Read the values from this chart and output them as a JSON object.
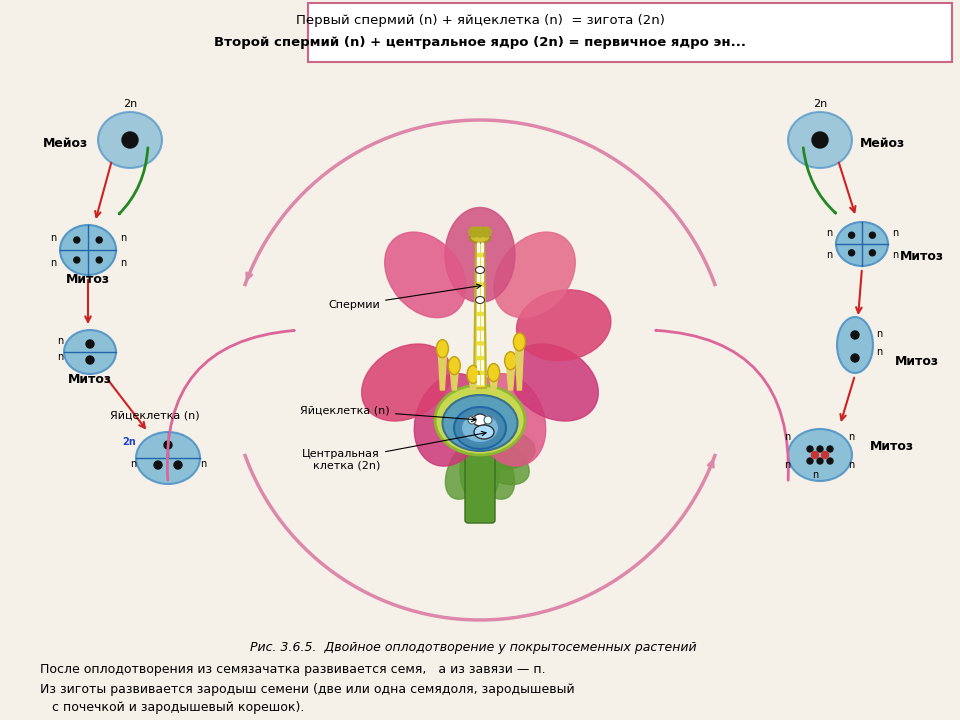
{
  "title1": "Первый спермий (n) + яйцеклетка (n)  = зигота (2n)",
  "title2": "Второй спермий (n) + центральное ядро (2n) = первичное ядро эн...",
  "fig_caption": "Рис. 3.6.5.  Двойное оплодотворение у покрытосеменных растений",
  "text_bottom1": "После оплодотворения из семязачатка развивается семя,   а из завязи — п.",
  "text_bottom2": "Из зиготы развивается зародыш семени (две или одна семядоля, зародышевый",
  "text_bottom3": "   с почечкой и зародышевый корешок).",
  "bg_color": "#f5f0e8",
  "cell_color": "#7ab8d4",
  "cell_edge": "#4a90c4",
  "nucleus_color": "#1a1a1a",
  "arrow_color": "#cc2222",
  "arrow_color2": "#cc88aa",
  "label_left": [
    "Мейоз",
    "Митоз",
    "Митоз"
  ],
  "label_right": [
    "Мейоз",
    "Митоз",
    "Митоз"
  ],
  "left_labels": [
    "2n",
    "n",
    "n",
    "n",
    "n",
    "2n",
    "n",
    "n"
  ],
  "right_labels": [
    "2n",
    "n",
    "n",
    "n",
    "n",
    "n",
    "n",
    "n"
  ],
  "annotation_labels": [
    "Яйцеклетка (n)",
    "Спермии",
    "Центральная\nклетка (2n)"
  ],
  "flower_colors": {
    "petals": [
      "#e85890",
      "#d44080",
      "#cc3070",
      "#e06080",
      "#d85888"
    ],
    "stamen": "#f0d020",
    "style": "#c8d890",
    "ovary": "#8ab830",
    "pistil_tube": "#e8e870",
    "ovule_outer": "#4a90c0",
    "ovule_inner": "#6ab0d8",
    "sepal": "#5a9830"
  }
}
